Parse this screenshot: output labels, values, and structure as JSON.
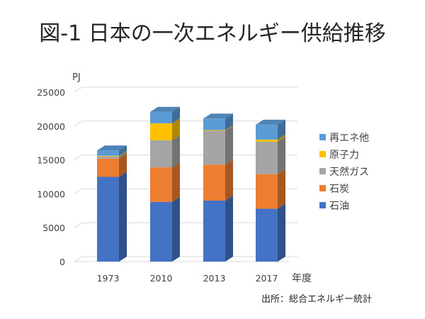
{
  "chart_data": {
    "type": "bar",
    "stacked": true,
    "style": "3d-column",
    "title": "図-1 日本の一次エネルギー供給推移",
    "ylabel": "PJ",
    "xlabel": "年度",
    "categories": [
      "1973",
      "2010",
      "2013",
      "2017"
    ],
    "ylim": [
      0,
      25000
    ],
    "yticks": [
      0,
      5000,
      10000,
      15000,
      20000,
      25000
    ],
    "grid": true,
    "legend_position": "right",
    "series": [
      {
        "name": "石油",
        "color": "#4472C4",
        "values": [
          12500,
          8800,
          9000,
          7800
        ]
      },
      {
        "name": "石炭",
        "color": "#ED7D31",
        "values": [
          2700,
          5100,
          5300,
          5100
        ]
      },
      {
        "name": "天然ガス",
        "color": "#A5A5A5",
        "values": [
          300,
          4000,
          5000,
          4800
        ]
      },
      {
        "name": "原子力",
        "color": "#FFC000",
        "values": [
          100,
          2500,
          100,
          300
        ]
      },
      {
        "name": "再エネ他",
        "color": "#5B9BD5",
        "values": [
          800,
          1700,
          1700,
          2200
        ]
      }
    ],
    "source": "出所：総合エネルギー統計"
  }
}
